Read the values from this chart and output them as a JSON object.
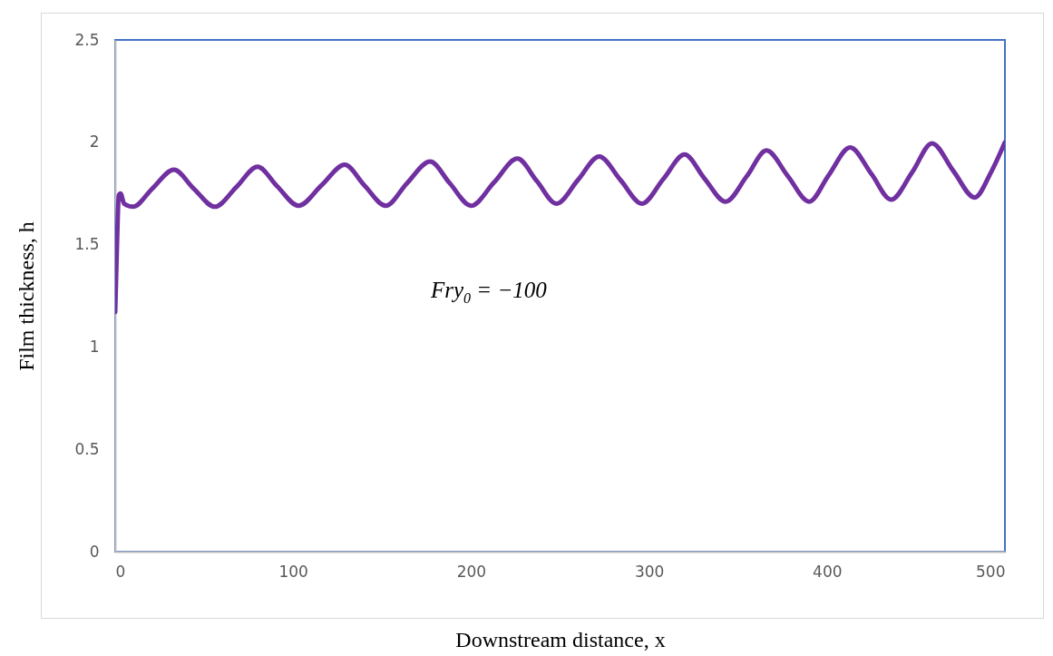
{
  "chart_data": {
    "type": "line",
    "xlabel": "Downstream distance, x",
    "ylabel": "Film thickness, h",
    "xlim": [
      0,
      500
    ],
    "ylim": [
      0,
      2.5
    ],
    "xticks": [
      0,
      100,
      200,
      300,
      400,
      500
    ],
    "yticks": [
      0,
      0.5,
      1,
      1.5,
      2,
      2.5
    ],
    "grid": false,
    "annotations": [
      "Fry$_{0}$ = −100"
    ],
    "x": [
      0,
      1,
      2,
      3,
      5,
      10,
      21,
      33,
      44,
      56,
      68,
      80,
      91,
      103,
      116,
      129,
      140,
      152,
      164,
      177,
      188,
      200,
      213,
      226,
      237,
      248,
      260,
      272,
      284,
      296,
      308,
      320,
      331,
      343,
      355,
      366,
      378,
      390,
      401,
      413,
      425,
      436,
      448,
      459,
      471,
      483,
      492,
      500
    ],
    "series": [
      {
        "color": "#7030a0",
        "values": [
          1.17,
          1.5,
          1.74,
          1.75,
          1.7,
          1.685,
          1.775,
          1.866,
          1.775,
          1.685,
          1.78,
          1.88,
          1.785,
          1.69,
          1.79,
          1.89,
          1.79,
          1.69,
          1.8,
          1.906,
          1.8,
          1.69,
          1.805,
          1.92,
          1.81,
          1.7,
          1.815,
          1.93,
          1.815,
          1.7,
          1.82,
          1.94,
          1.825,
          1.71,
          1.835,
          1.96,
          1.835,
          1.71,
          1.84,
          1.975,
          1.845,
          1.72,
          1.855,
          1.995,
          1.86,
          1.73,
          1.85,
          2.0
        ]
      }
    ]
  }
}
